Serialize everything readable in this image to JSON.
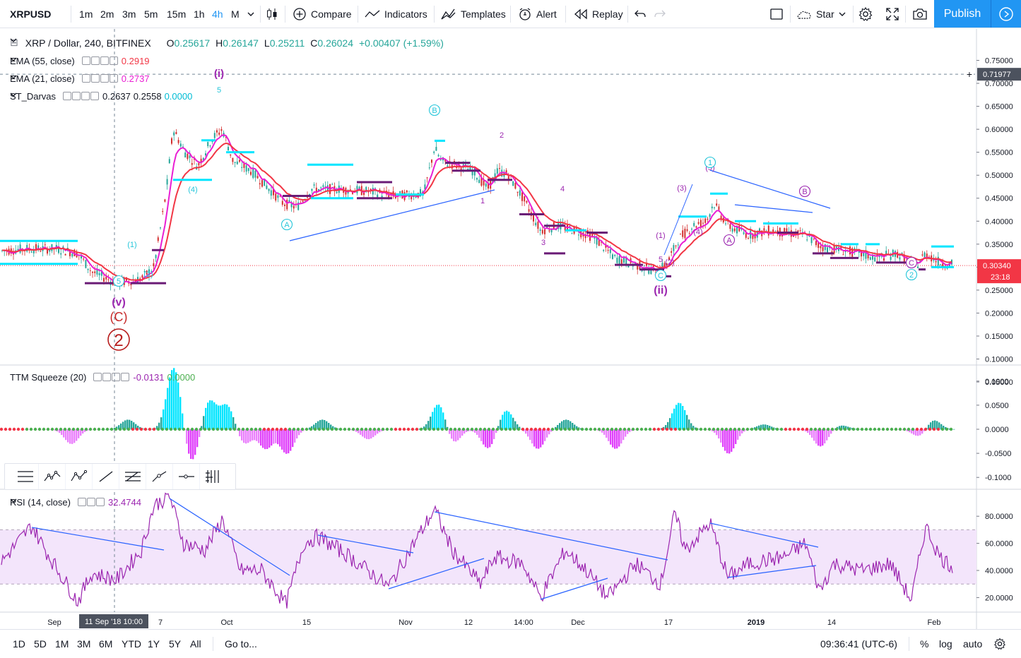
{
  "toolbar": {
    "symbol": "XRPUSD",
    "intervals": [
      "1m",
      "2m",
      "3m",
      "5m",
      "15m",
      "1h",
      "4h",
      "M"
    ],
    "active_interval": "4h",
    "compare": "Compare",
    "indicators": "Indicators",
    "templates": "Templates",
    "alert": "Alert",
    "replay": "Replay",
    "star": "Star",
    "publish": "Publish"
  },
  "legend": {
    "title": "XRP / Dollar, 240, BITFINEX",
    "o_label": "O",
    "o_val": "0.25617",
    "h_label": "H",
    "h_val": "0.26147",
    "l_label": "L",
    "l_val": "0.25211",
    "c_label": "C",
    "c_val": "0.26024",
    "change": "+0.00407 (+1.59%)",
    "ema55_name": "EMA (55, close)",
    "ema55_val": "0.2919",
    "ema21_name": "EMA (21, close)",
    "ema21_val": "0.2737",
    "darvas_name": "ST_Darvas",
    "darvas_v1": "0.2637",
    "darvas_v2": "0.2558",
    "darvas_v3": "0.0000",
    "ttm_name": "TTM Squeeze (20)",
    "ttm_v1": "-0.0131",
    "ttm_v2": "0.0000",
    "rsi_name": "RSI (14, close)",
    "rsi_val": "32.4744"
  },
  "price_axis": {
    "ticks": [
      "0.75000",
      "0.70000",
      "0.65000",
      "0.60000",
      "0.55000",
      "0.50000",
      "0.45000",
      "0.40000",
      "0.35000",
      "0.30000",
      "0.25000",
      "0.20000",
      "0.15000",
      "0.10000",
      "0.05000"
    ],
    "tick_values": [
      0.75,
      0.7,
      0.65,
      0.6,
      0.55,
      0.5,
      0.45,
      0.4,
      0.35,
      0.3,
      0.25,
      0.2,
      0.15,
      0.1,
      0.05
    ],
    "crosshair_label": "0.71977",
    "crosshair_value": 0.71977,
    "last_price": "0.30340",
    "last_price_value": 0.3034,
    "countdown": "23:18"
  },
  "ttm_axis": {
    "ticks": [
      "0.1000",
      "0.0500",
      "0.0000",
      "-0.0500",
      "-0.1000"
    ],
    "tick_values": [
      0.1,
      0.05,
      0,
      -0.05,
      -0.1
    ]
  },
  "rsi_axis": {
    "ticks": [
      "80.0000",
      "60.0000",
      "40.0000",
      "20.0000"
    ],
    "tick_values": [
      80,
      60,
      40,
      20
    ]
  },
  "time_axis": {
    "labels": [
      "Sep",
      "7",
      "Oct",
      "15",
      "Nov",
      "12",
      "14:00",
      "Dec",
      "17",
      "2019",
      "14",
      "Feb"
    ],
    "crosshair_label": "11 Sep '18   10:00"
  },
  "wave_labels": [
    {
      "text": "(i)",
      "color": "#9c27b0"
    },
    {
      "text": "5",
      "color": "#26c6da"
    },
    {
      "text": "(v)",
      "color": "#9c27b0"
    },
    {
      "text": "(C)",
      "color": "#c62828"
    },
    {
      "text": "2",
      "color": "#b71c1c"
    },
    {
      "text": "(1)",
      "color": "#26c6da"
    },
    {
      "text": "(2)",
      "color": "#26c6da"
    },
    {
      "text": "(4)",
      "color": "#26c6da"
    },
    {
      "text": "B",
      "color": "#26c6da"
    },
    {
      "text": "A",
      "color": "#26c6da"
    },
    {
      "text": "1",
      "color": "#9c27b0"
    },
    {
      "text": "2",
      "color": "#9c27b0"
    },
    {
      "text": "3",
      "color": "#9c27b0"
    },
    {
      "text": "4",
      "color": "#9c27b0"
    },
    {
      "text": "5",
      "color": "#9c27b0"
    },
    {
      "text": "(1)",
      "color": "#9c27b0"
    },
    {
      "text": "(2)",
      "color": "#9c27b0"
    },
    {
      "text": "(3)",
      "color": "#9c27b0"
    },
    {
      "text": "(4)",
      "color": "#9c27b0"
    },
    {
      "text": "(5)",
      "color": "#9c27b0"
    },
    {
      "text": "C",
      "color": "#26c6da"
    },
    {
      "text": "(ii)",
      "color": "#9c27b0"
    },
    {
      "text": "1",
      "color": "#26c6da"
    },
    {
      "text": "A",
      "color": "#9c27b0"
    },
    {
      "text": "B",
      "color": "#9c27b0"
    },
    {
      "text": "C",
      "color": "#9c27b0"
    },
    {
      "text": "2",
      "color": "#26c6da"
    }
  ],
  "bottom": {
    "ranges": [
      "1D",
      "5D",
      "1M",
      "3M",
      "6M",
      "YTD",
      "1Y",
      "5Y",
      "All"
    ],
    "goto": "Go to...",
    "clock": "09:36:41 (UTC-6)",
    "percent": "%",
    "log": "log",
    "auto": "auto"
  },
  "colors": {
    "ema55": "#f23645",
    "ema21": "#e91ed3",
    "darvas_cyan": "#00e5ff",
    "darvas_purple": "#6a1b76",
    "rsi": "#9c27b0",
    "rsi_band": "#f3e5fb",
    "trend": "#2962ff",
    "accent": "#2196f3"
  },
  "icons": [
    "candles-icon",
    "plus-circle-icon",
    "trend-icon",
    "templates-icon",
    "alarm-icon",
    "replay-icon",
    "undo-icon",
    "redo-icon",
    "square-icon",
    "cloud-icon",
    "gear-icon",
    "fullscreen-icon",
    "camera-icon",
    "play-icon"
  ]
}
